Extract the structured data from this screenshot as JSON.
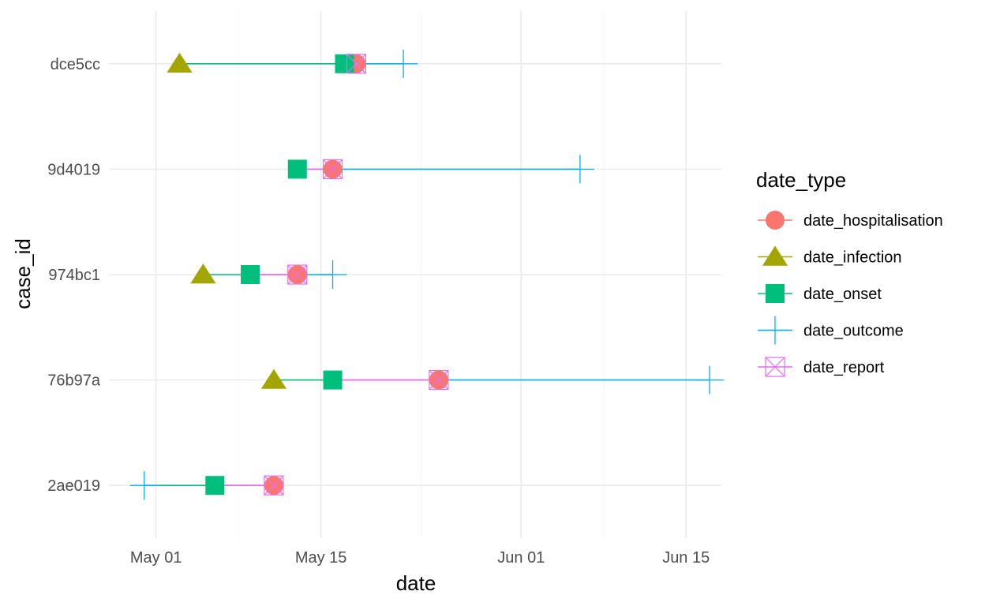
{
  "chart_data": {
    "type": "scatter",
    "title": "",
    "xlabel": "date",
    "ylabel": "case_id",
    "x_axis_type": "date",
    "xlim": [
      "2021-04-27",
      "2021-06-18"
    ],
    "x_ticks": [
      {
        "date": "2021-05-01",
        "label": "May 01"
      },
      {
        "date": "2021-05-15",
        "label": "May 15"
      },
      {
        "date": "2021-06-01",
        "label": "Jun 01"
      },
      {
        "date": "2021-06-15",
        "label": "Jun 15"
      }
    ],
    "grid": true,
    "legend_position": "right",
    "legend_title": "date_type",
    "categories": [
      "dce5cc",
      "9d4019",
      "974bc1",
      "76b97a",
      "2ae019"
    ],
    "series": [
      {
        "name": "date_hospitalisation",
        "color": "#F8766D",
        "shape": "circle",
        "values": [
          "2021-05-18",
          "2021-05-16",
          "2021-05-13",
          "2021-05-25",
          "2021-05-11"
        ]
      },
      {
        "name": "date_infection",
        "color": "#A3A500",
        "shape": "triangle",
        "values": [
          "2021-05-03",
          null,
          "2021-05-05",
          "2021-05-11",
          null
        ]
      },
      {
        "name": "date_onset",
        "color": "#00BF7D",
        "shape": "square",
        "values": [
          "2021-05-17",
          "2021-05-13",
          "2021-05-09",
          "2021-05-16",
          "2021-05-06"
        ]
      },
      {
        "name": "date_outcome",
        "color": "#00B0F6",
        "shape": "plus",
        "values": [
          "2021-05-22",
          "2021-06-06",
          "2021-05-16",
          "2021-06-17",
          "2021-04-30"
        ]
      },
      {
        "name": "date_report",
        "color": "#E76BF3",
        "shape": "square-cross",
        "values": [
          "2021-05-18",
          "2021-05-16",
          "2021-05-13",
          "2021-05-25",
          "2021-05-11"
        ]
      }
    ]
  }
}
